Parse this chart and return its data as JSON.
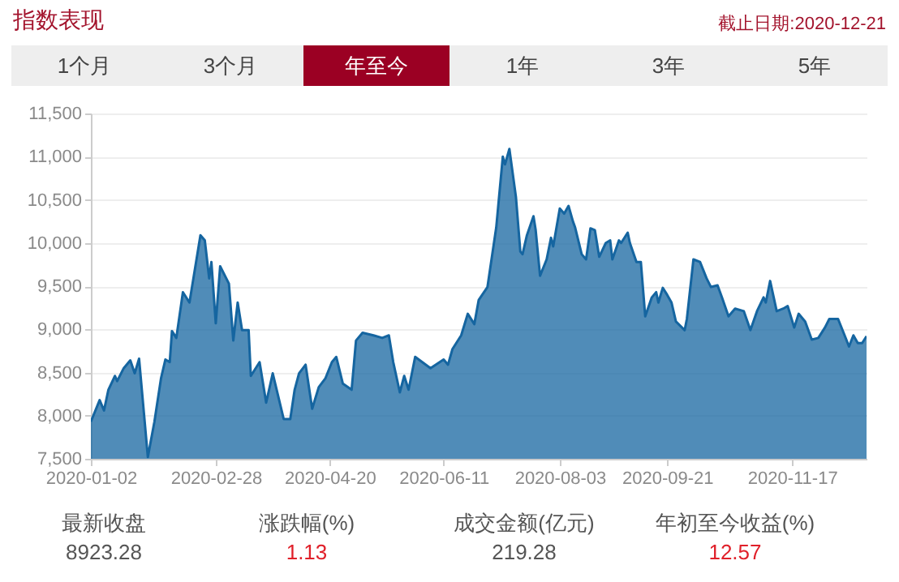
{
  "chart_data": {
    "type": "area",
    "title": "指数表现",
    "annotations": [
      "截止日期:2020-12-21",
      "1个月",
      "3个月",
      "年至今",
      "1年",
      "3年",
      "5年",
      "最新收盘",
      "8923.28",
      "涨跌幅(%)",
      "1.13",
      "成交金额(亿元)",
      "219.28",
      "年初至今收益(%)",
      "12.57"
    ],
    "x": [
      "2020-01-02",
      "2020-01-06",
      "2020-01-08",
      "2020-01-10",
      "2020-01-13",
      "2020-01-14",
      "2020-01-17",
      "2020-01-20",
      "2020-01-22",
      "2020-01-24",
      "2020-01-28",
      "2020-01-31",
      "2020-02-03",
      "2020-02-05",
      "2020-02-07",
      "2020-02-08",
      "2020-02-10",
      "2020-02-13",
      "2020-02-16",
      "2020-02-21",
      "2020-02-23",
      "2020-02-25",
      "2020-02-26",
      "2020-02-28",
      "2020-03-01",
      "2020-03-05",
      "2020-03-07",
      "2020-03-09",
      "2020-03-11",
      "2020-03-14",
      "2020-03-15",
      "2020-03-19",
      "2020-03-22",
      "2020-03-25",
      "2020-03-30",
      "2020-04-02",
      "2020-04-04",
      "2020-04-06",
      "2020-04-09",
      "2020-04-12",
      "2020-04-15",
      "2020-04-18",
      "2020-04-21",
      "2020-04-23",
      "2020-04-26",
      "2020-04-30",
      "2020-05-02",
      "2020-05-05",
      "2020-05-10",
      "2020-05-14",
      "2020-05-17",
      "2020-05-19",
      "2020-05-22",
      "2020-05-24",
      "2020-05-26",
      "2020-05-29",
      "2020-06-05",
      "2020-06-11",
      "2020-06-13",
      "2020-06-15",
      "2020-06-19",
      "2020-06-22",
      "2020-06-25",
      "2020-06-27",
      "2020-07-01",
      "2020-07-05",
      "2020-07-08",
      "2020-07-09",
      "2020-07-11",
      "2020-07-14",
      "2020-07-16",
      "2020-07-17",
      "2020-07-19",
      "2020-07-22",
      "2020-07-23",
      "2020-07-25",
      "2020-07-28",
      "2020-07-30",
      "2020-07-31",
      "2020-08-03",
      "2020-08-05",
      "2020-08-07",
      "2020-08-09",
      "2020-08-10",
      "2020-08-13",
      "2020-08-15",
      "2020-08-17",
      "2020-08-19",
      "2020-08-21",
      "2020-08-24",
      "2020-08-26",
      "2020-08-27",
      "2020-08-30",
      "2020-08-31",
      "2020-09-03",
      "2020-09-04",
      "2020-09-07",
      "2020-09-09",
      "2020-09-11",
      "2020-09-14",
      "2020-09-16",
      "2020-09-17",
      "2020-09-19",
      "2020-09-21",
      "2020-09-23",
      "2020-09-25",
      "2020-09-29",
      "2020-09-30",
      "2020-10-03",
      "2020-10-06",
      "2020-10-09",
      "2020-10-11",
      "2020-10-14",
      "2020-10-16",
      "2020-10-19",
      "2020-10-22",
      "2020-10-26",
      "2020-10-29",
      "2020-11-01",
      "2020-11-04",
      "2020-11-05",
      "2020-11-07",
      "2020-11-10",
      "2020-11-13",
      "2020-11-15",
      "2020-11-18",
      "2020-11-20",
      "2020-11-23",
      "2020-11-26",
      "2020-11-29",
      "2020-12-02",
      "2020-12-04",
      "2020-12-08",
      "2020-12-11",
      "2020-12-13",
      "2020-12-15",
      "2020-12-17",
      "2020-12-19",
      "2020-12-21"
    ],
    "values": [
      7930,
      8180,
      8060,
      8300,
      8460,
      8400,
      8550,
      8640,
      8490,
      8660,
      7520,
      7930,
      8430,
      8650,
      8620,
      8980,
      8900,
      9430,
      9310,
      10090,
      10030,
      9590,
      9780,
      9070,
      9730,
      9530,
      8870,
      9310,
      8990,
      8990,
      8460,
      8620,
      8150,
      8490,
      7960,
      7960,
      8300,
      8490,
      8590,
      8080,
      8330,
      8430,
      8620,
      8680,
      8370,
      8300,
      8870,
      8960,
      8930,
      8900,
      8930,
      8620,
      8270,
      8460,
      8300,
      8680,
      8550,
      8650,
      8590,
      8770,
      8930,
      9180,
      9060,
      9340,
      9490,
      10180,
      11000,
      10910,
      11090,
      10530,
      9900,
      9870,
      10090,
      10310,
      10150,
      9620,
      9810,
      10060,
      9960,
      10400,
      10340,
      10430,
      10250,
      10180,
      9870,
      9810,
      10170,
      10150,
      9840,
      10000,
      10030,
      9810,
      10030,
      10000,
      10120,
      10000,
      9780,
      9780,
      9150,
      9370,
      9430,
      9310,
      9480,
      9400,
      9310,
      9090,
      8990,
      9120,
      9810,
      9780,
      9590,
      9490,
      9510,
      9370,
      9150,
      9240,
      9210,
      8990,
      9210,
      9370,
      9310,
      9560,
      9210,
      9240,
      9270,
      9020,
      9180,
      9090,
      8880,
      8900,
      9020,
      9120,
      9120,
      8930,
      8800,
      8930,
      8840,
      8840,
      8920
    ],
    "color": "#1565a0",
    "xlim": [
      "2020-01-02",
      "2020-12-21"
    ],
    "xticks": [
      "2020-01-02",
      "2020-02-28",
      "2020-04-20",
      "2020-06-11",
      "2020-08-03",
      "2020-09-21",
      "2020-11-17"
    ],
    "ylim": [
      7500,
      11500
    ],
    "yticks": [
      {
        "value": 7500,
        "label": "7,500"
      },
      {
        "value": 8000,
        "label": "8,000"
      },
      {
        "value": 8500,
        "label": "8,500"
      },
      {
        "value": 9000,
        "label": "9,000"
      },
      {
        "value": 9500,
        "label": "9,500"
      },
      {
        "value": 10000,
        "label": "10,000"
      },
      {
        "value": 10500,
        "label": "10,500"
      },
      {
        "value": 11000,
        "label": "11,000"
      },
      {
        "value": 11500,
        "label": "11,500"
      }
    ],
    "grid": "y"
  }
}
